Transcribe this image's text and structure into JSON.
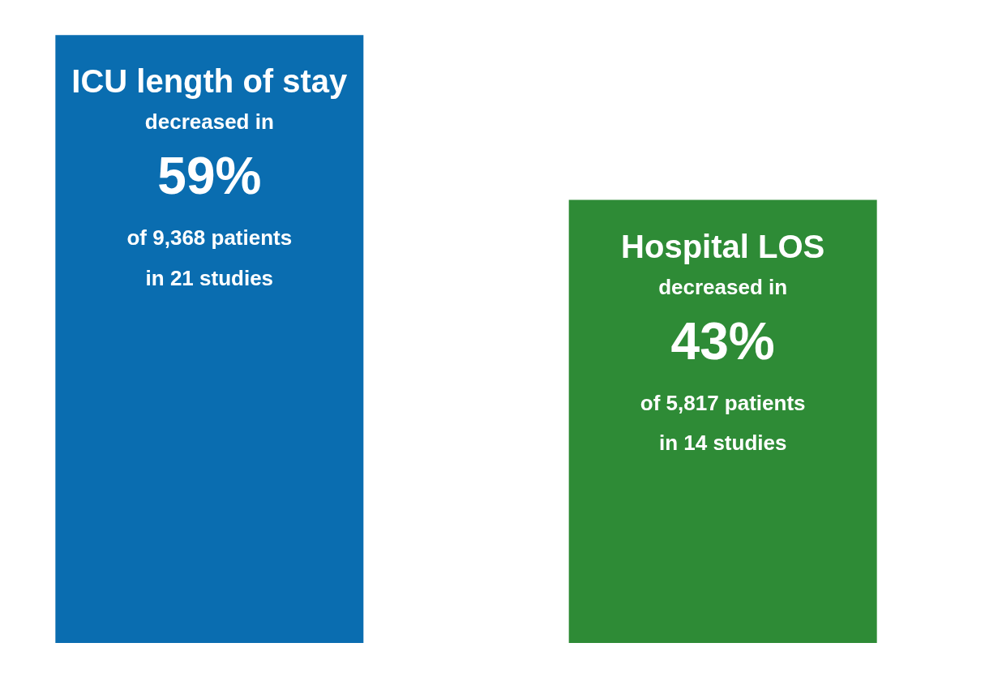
{
  "chart_data": {
    "type": "bar",
    "categories": [
      "ICU length of stay",
      "Hospital LOS"
    ],
    "values": [
      59,
      43
    ],
    "colors": [
      "#0a6db0",
      "#2e8b36"
    ],
    "value_labels": [
      "59%",
      "43%"
    ],
    "ylim": [
      0,
      62
    ],
    "tick_labels": false,
    "annotations": [
      "decreased in",
      "of 9,368 patients",
      "in 21 studies",
      "decreased in",
      "of 5,817 patients",
      "in 14 studies"
    ]
  }
}
